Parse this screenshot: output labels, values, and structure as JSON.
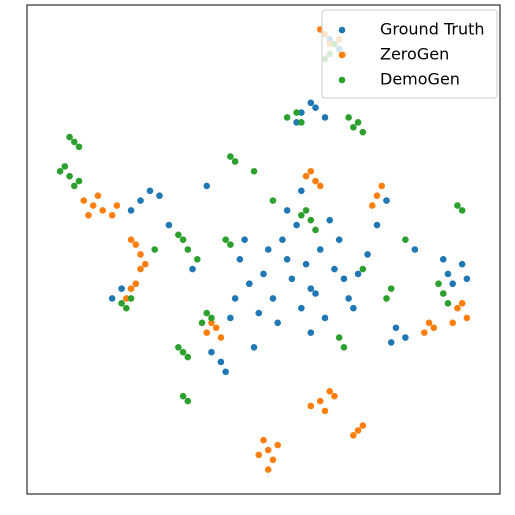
{
  "chart_data": {
    "type": "scatter",
    "xlim": [
      0,
      100
    ],
    "ylim": [
      0,
      100
    ],
    "legend": "upper right",
    "series": [
      {
        "name": "Ground Truth",
        "color": "#1f77b4",
        "x": [
          50,
          55,
          60,
          65,
          58,
          52,
          62,
          68,
          47,
          56,
          63,
          45,
          70,
          54,
          59,
          66,
          49,
          72,
          61,
          57,
          44,
          53,
          67,
          60,
          46,
          51,
          69,
          64,
          55,
          58,
          58,
          61,
          63,
          57,
          60,
          89,
          92,
          90,
          93,
          88,
          78,
          80,
          77,
          41,
          39,
          42,
          24,
          26,
          22,
          28,
          20,
          18,
          64,
          66,
          43,
          35,
          74,
          82,
          30,
          48,
          38,
          76
        ],
        "y": [
          45,
          48,
          42,
          46,
          38,
          40,
          50,
          40,
          43,
          44,
          36,
          48,
          45,
          52,
          47,
          52,
          37,
          49,
          41,
          55,
          40,
          35,
          44,
          33,
          52,
          50,
          38,
          56,
          58,
          62,
          78,
          79,
          77,
          76,
          80,
          45,
          47,
          43,
          44,
          48,
          34,
          32,
          31,
          27,
          29,
          25,
          60,
          62,
          58,
          61,
          42,
          40,
          93,
          91,
          36,
          46,
          55,
          50,
          55,
          30,
          63,
          60
        ]
      },
      {
        "name": "ZeroGen",
        "color": "#ff7f0e",
        "x": [
          14,
          12,
          16,
          18,
          15,
          13,
          19,
          24,
          23,
          25,
          22,
          24,
          22,
          21,
          23,
          40,
          38,
          41,
          39,
          61,
          60,
          62,
          59,
          74,
          75,
          73,
          62,
          60,
          64,
          63,
          65,
          51,
          52,
          50,
          53,
          51,
          49,
          91,
          93,
          90,
          92,
          85,
          84,
          86,
          70,
          71,
          69,
          64,
          63,
          66,
          62,
          67
        ],
        "y": [
          59,
          60,
          58,
          57,
          61,
          57,
          59,
          49,
          51,
          47,
          52,
          46,
          42,
          40,
          43,
          34,
          33,
          32,
          35,
          64,
          66,
          63,
          65,
          61,
          63,
          59,
          19,
          18,
          21,
          17,
          20,
          9,
          7,
          11,
          10,
          5,
          8,
          38,
          36,
          35,
          39,
          35,
          33,
          34,
          13,
          14,
          12,
          92,
          94,
          93,
          95,
          90
        ]
      },
      {
        "name": "DemoGen",
        "color": "#2ca02c",
        "x": [
          9,
          7,
          11,
          8,
          10,
          10,
          9,
          11,
          44,
          43,
          33,
          34,
          32,
          43,
          42,
          60,
          58,
          61,
          59,
          69,
          70,
          68,
          71,
          57,
          55,
          58,
          91,
          92,
          88,
          87,
          89,
          33,
          32,
          34,
          39,
          37,
          38,
          66,
          67,
          33,
          34,
          64,
          63,
          65,
          22,
          21,
          20,
          77,
          76,
          48,
          52,
          36,
          80,
          71,
          27
        ],
        "y": [
          65,
          66,
          64,
          67,
          63,
          72,
          73,
          71,
          68,
          69,
          52,
          50,
          53,
          51,
          52,
          56,
          57,
          54,
          58,
          75,
          76,
          77,
          74,
          78,
          77,
          76,
          59,
          58,
          41,
          43,
          39,
          29,
          30,
          28,
          36,
          35,
          37,
          32,
          30,
          20,
          19,
          90,
          89,
          92,
          40,
          38,
          39,
          42,
          40,
          66,
          60,
          48,
          52,
          46,
          50
        ]
      }
    ]
  }
}
